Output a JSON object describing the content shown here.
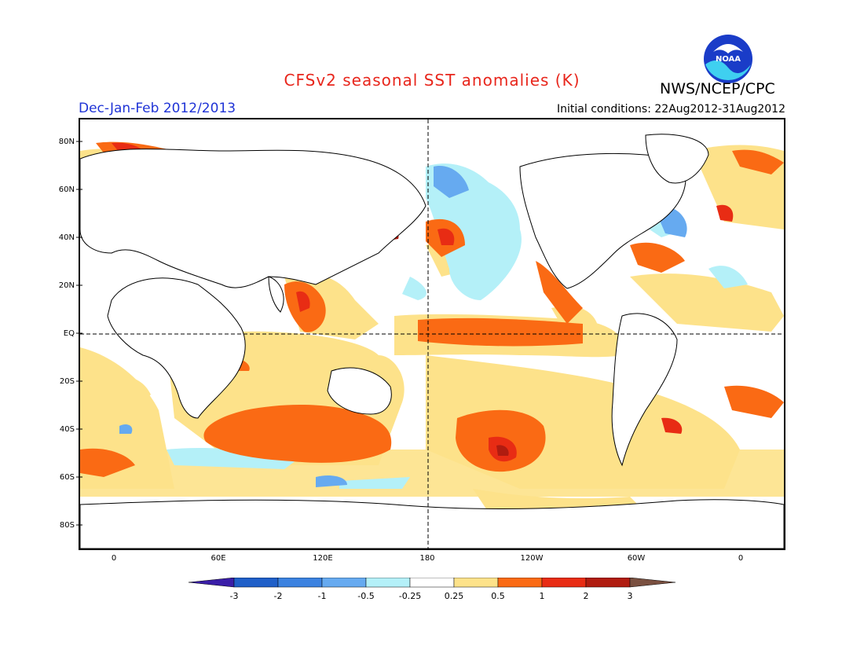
{
  "title": "CFSv2 seasonal SST anomalies (K)",
  "organization": "NWS/NCEP/CPC",
  "logo_text": "NOAA",
  "season": "Dec-Jan-Feb 2012/2013",
  "initial_conditions": "Initial conditions: 22Aug2012-31Aug2012",
  "lat_labels": [
    "80N",
    "60N",
    "40N",
    "20N",
    "EQ",
    "20S",
    "40S",
    "60S",
    "80S"
  ],
  "lon_labels": [
    "0",
    "60E",
    "120E",
    "180",
    "120W",
    "60W",
    "0"
  ],
  "colorbar": {
    "labels": [
      "-3",
      "-2",
      "-1",
      "-0.5",
      "-0.25",
      "0.25",
      "0.5",
      "1",
      "2",
      "3"
    ],
    "colors": [
      "#3a1ea8",
      "#1f5fc8",
      "#3b82e0",
      "#66aaf0",
      "#b4f0f8",
      "#ffffff",
      "#fde28a",
      "#fa6a14",
      "#e82c14",
      "#b01c10",
      "#7a5040"
    ]
  },
  "colors": {
    "title": "#e8261c",
    "season": "#1f33d6",
    "land": "#ffffff",
    "coast": "#000000"
  }
}
